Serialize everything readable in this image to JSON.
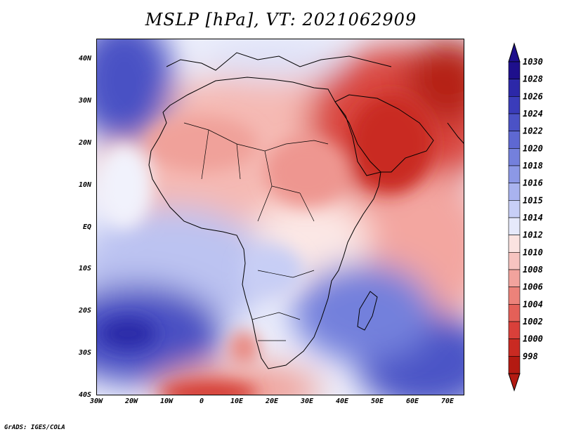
{
  "title": "MSLP [hPa], VT: 2021062909",
  "credit": "GrADS: IGES/COLA",
  "map": {
    "region": "Africa",
    "lat_labels": [
      "40N",
      "30N",
      "20N",
      "10N",
      "EQ",
      "10S",
      "20S",
      "30S",
      "40S"
    ],
    "lon_labels": [
      "30W",
      "20W",
      "10W",
      "0",
      "10E",
      "20E",
      "30E",
      "40E",
      "50E",
      "60E",
      "70E"
    ],
    "lat_range": [
      -40,
      45
    ],
    "lon_range": [
      -30,
      75
    ],
    "features": [
      {
        "name": "high-south-atlantic",
        "lon": -22,
        "lat": -27,
        "value": 1028
      },
      {
        "name": "high-north-atlantic",
        "lon": -25,
        "lat": 35,
        "value": 1026
      },
      {
        "name": "high-south-indian",
        "lon": 62,
        "lat": -31,
        "value": 1026
      },
      {
        "name": "low-arabia-persia",
        "lon": 60,
        "lat": 30,
        "value": 998
      },
      {
        "name": "low-southern-ocean",
        "lon": 2,
        "lat": -40,
        "value": 1000
      },
      {
        "name": "low-kalahari",
        "lon": 12,
        "lat": -29,
        "value": 1006
      }
    ]
  },
  "colorbar": {
    "levels": [
      "1030",
      "1028",
      "1026",
      "1024",
      "1022",
      "1020",
      "1018",
      "1016",
      "1015",
      "1014",
      "1012",
      "1010",
      "1008",
      "1006",
      "1004",
      "1002",
      "1000",
      "998"
    ],
    "colors": [
      "#1e0f8c",
      "#2c28a8",
      "#3a3cba",
      "#4b52c6",
      "#5e68d2",
      "#7480dc",
      "#8c98e6",
      "#a9b3ef",
      "#c8cff7",
      "#e6e9fb",
      "#fbe3e1",
      "#f7c4c0",
      "#f2a39d",
      "#ec827a",
      "#e46058",
      "#d9403a",
      "#c92a22",
      "#b31a12"
    ],
    "top_arrow_color": "#1e0f8c",
    "bottom_arrow_color": "#b31a12"
  }
}
